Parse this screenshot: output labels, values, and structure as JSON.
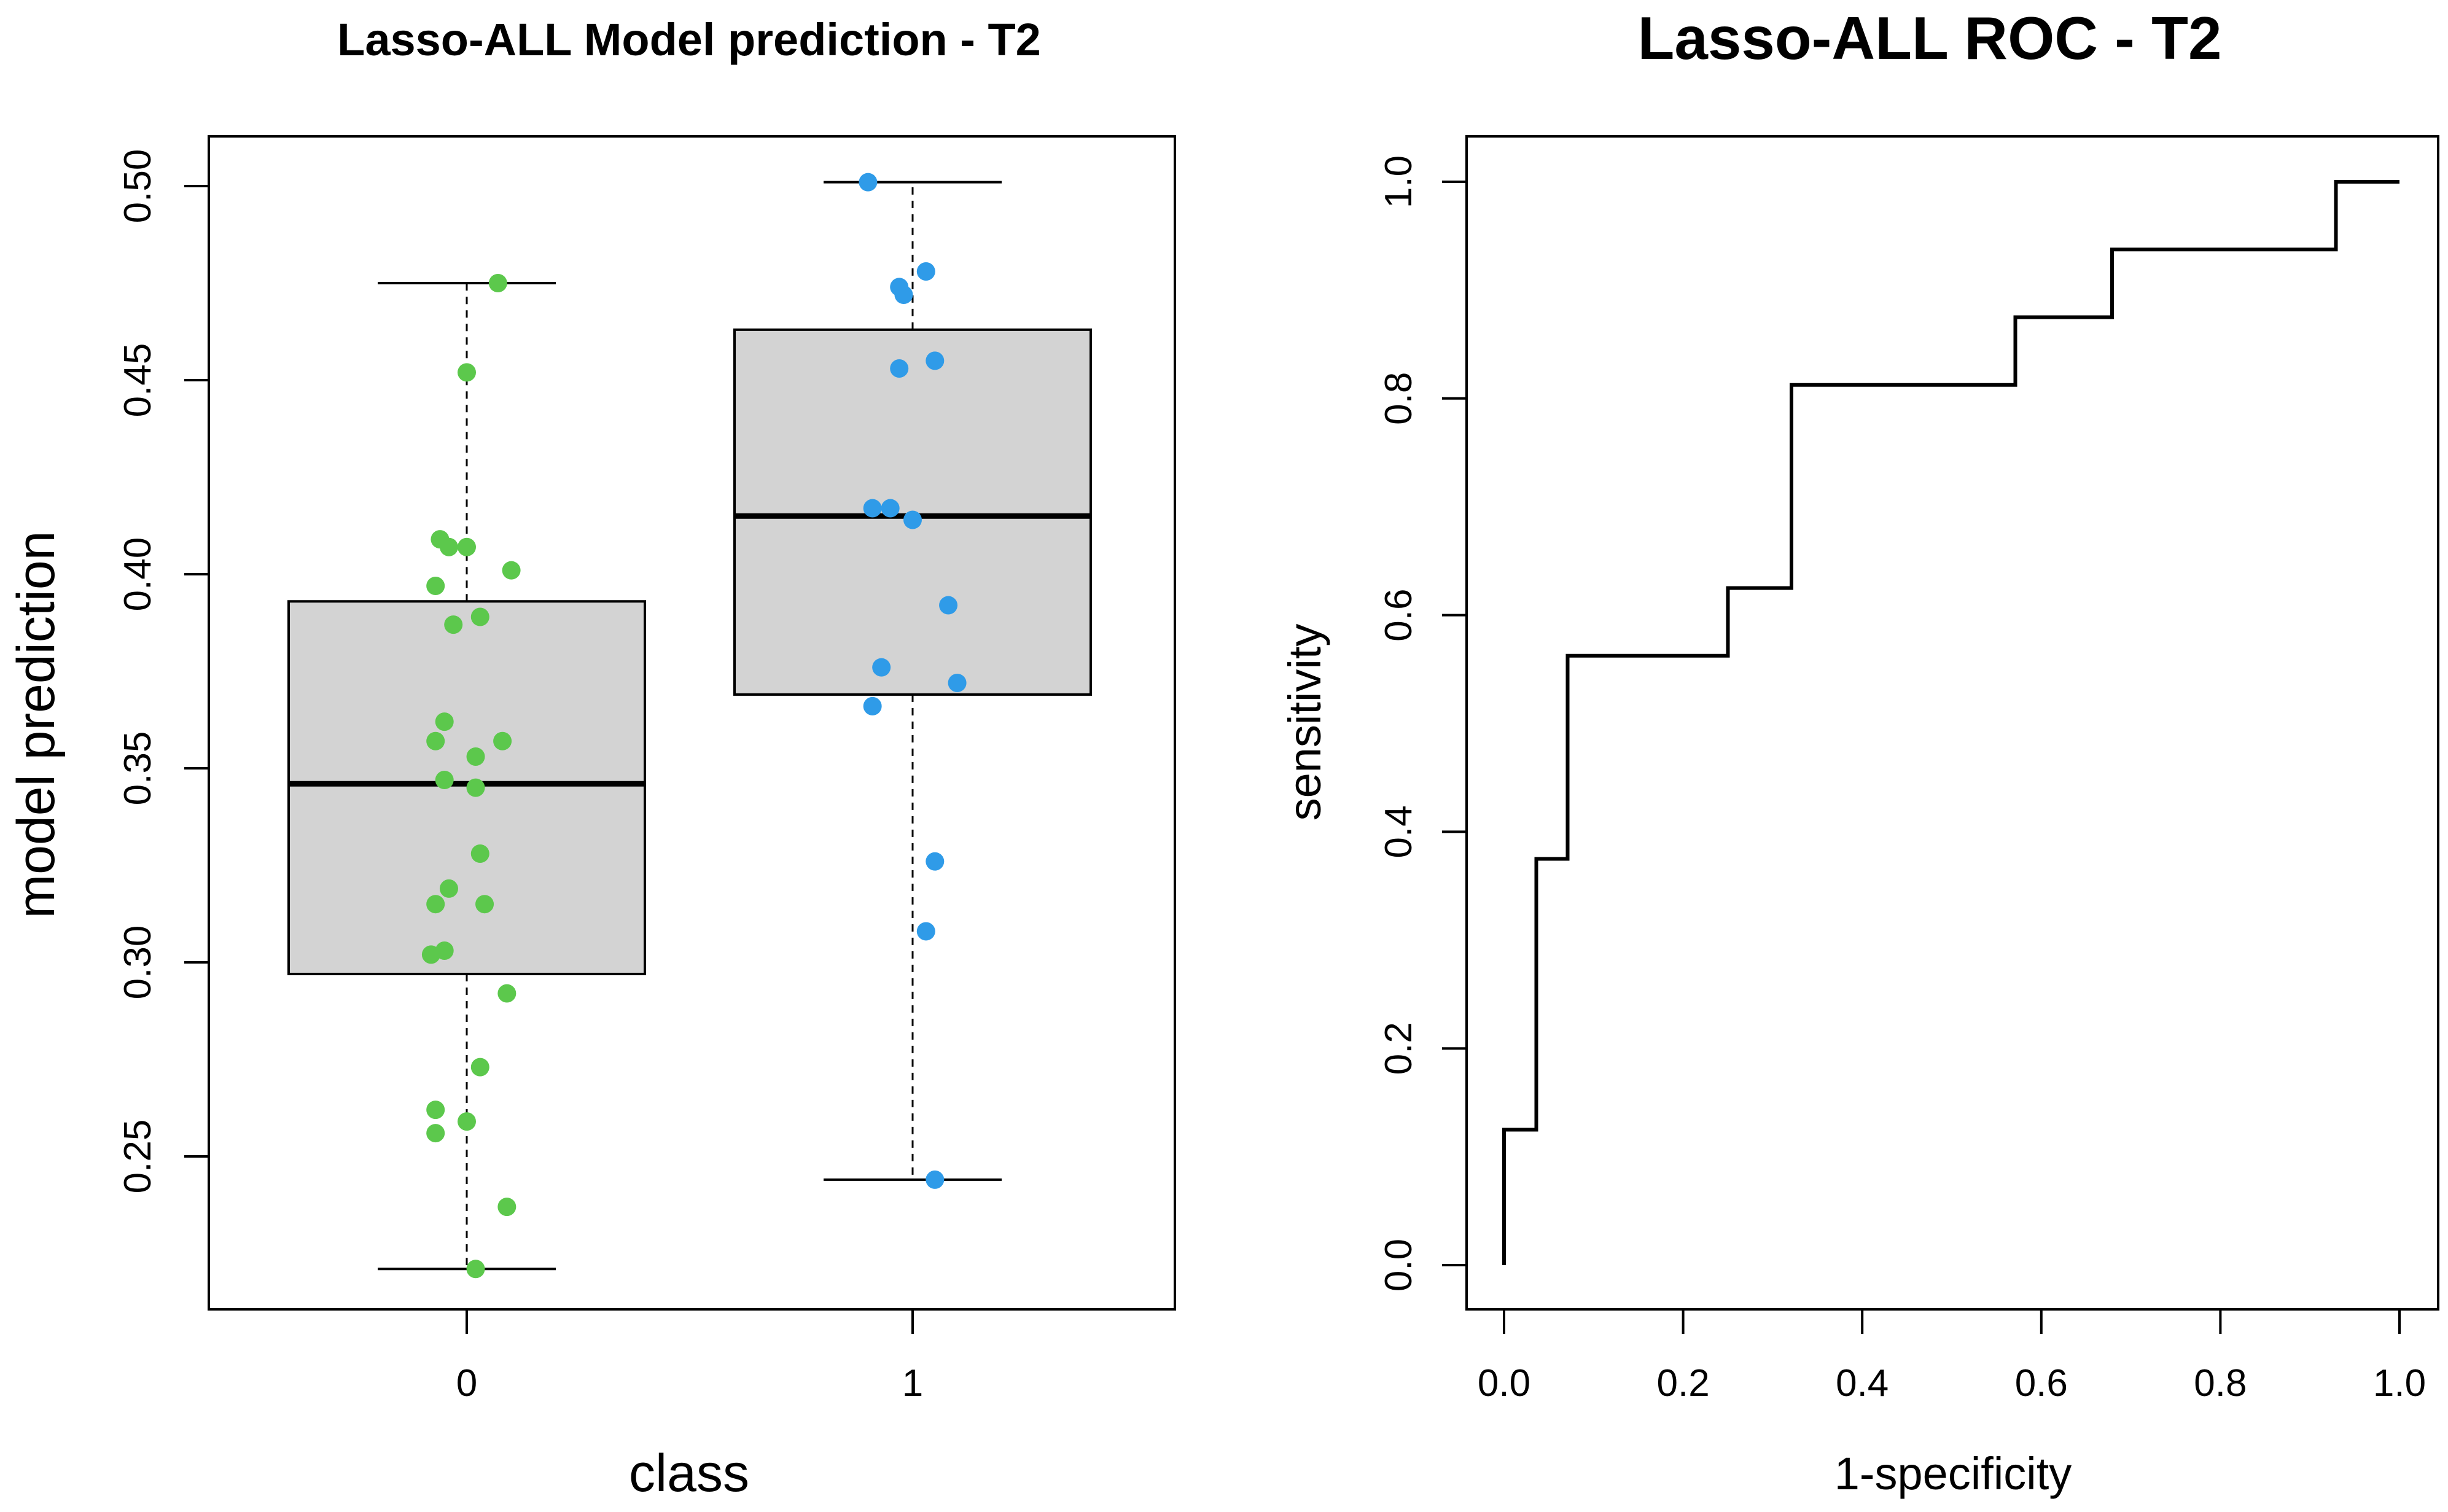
{
  "colors": {
    "class0_points": "#5cc84c",
    "class1_points": "#2f9be8",
    "box_fill": "#d3d3d3",
    "stroke": "#000000"
  },
  "chart_data": [
    {
      "type": "box",
      "title": "Lasso-ALL Model prediction - T2",
      "xlabel": "class",
      "ylabel": "model prediction",
      "categories": [
        "0",
        "1"
      ],
      "ylim": [
        0.215,
        0.51
      ],
      "yticks": [
        0.25,
        0.3,
        0.35,
        0.4,
        0.45,
        0.5
      ],
      "ytick_labels": [
        "0.25",
        "0.30",
        "0.35",
        "0.40",
        "0.45",
        "0.50"
      ],
      "boxes": [
        {
          "category": "0",
          "whisker_low": 0.221,
          "q1": 0.297,
          "median": 0.346,
          "q3": 0.393,
          "whisker_high": 0.475
        },
        {
          "category": "1",
          "whisker_low": 0.244,
          "q1": 0.369,
          "median": 0.415,
          "q3": 0.463,
          "whisker_high": 0.501
        }
      ],
      "points": [
        {
          "category": "0",
          "values": [
            0.475,
            0.452,
            0.409,
            0.407,
            0.407,
            0.401,
            0.397,
            0.389,
            0.387,
            0.362,
            0.357,
            0.357,
            0.353,
            0.347,
            0.345,
            0.328,
            0.319,
            0.315,
            0.315,
            0.303,
            0.302,
            0.292,
            0.273,
            0.262,
            0.259,
            0.256,
            0.237,
            0.221
          ],
          "jitter": [
            0.07,
            0.0,
            -0.06,
            -0.04,
            0.0,
            0.1,
            -0.07,
            0.03,
            -0.03,
            -0.05,
            -0.07,
            0.08,
            0.02,
            -0.05,
            0.02,
            0.03,
            -0.04,
            -0.07,
            0.04,
            -0.05,
            -0.08,
            0.09,
            0.03,
            -0.07,
            0.0,
            -0.07,
            0.09,
            0.02
          ]
        },
        {
          "category": "1",
          "values": [
            0.501,
            0.478,
            0.474,
            0.472,
            0.455,
            0.453,
            0.417,
            0.417,
            0.414,
            0.392,
            0.376,
            0.372,
            0.366,
            0.326,
            0.308,
            0.244
          ],
          "jitter": [
            -0.1,
            0.03,
            -0.03,
            -0.02,
            0.05,
            -0.03,
            -0.09,
            -0.05,
            0.0,
            0.08,
            -0.07,
            0.1,
            -0.09,
            0.05,
            0.03,
            0.05
          ]
        }
      ]
    },
    {
      "type": "line",
      "title": "Lasso-ALL ROC - T2",
      "xlabel": "1-specificity",
      "ylabel": "sensitivity",
      "xlim": [
        0.0,
        1.0
      ],
      "ylim": [
        0.0,
        1.0
      ],
      "xticks": [
        0.0,
        0.2,
        0.4,
        0.6,
        0.8,
        1.0
      ],
      "xtick_labels": [
        "0.0",
        "0.2",
        "0.4",
        "0.6",
        "0.8",
        "1.0"
      ],
      "yticks": [
        0.0,
        0.2,
        0.4,
        0.6,
        0.8,
        1.0
      ],
      "ytick_labels": [
        "0.0",
        "0.2",
        "0.4",
        "0.6",
        "0.8",
        "1.0"
      ],
      "series": [
        {
          "name": "ROC",
          "x": [
            0.0,
            0.0,
            0.036,
            0.036,
            0.071,
            0.071,
            0.25,
            0.25,
            0.321,
            0.321,
            0.571,
            0.571,
            0.679,
            0.679,
            0.929,
            0.929,
            1.0
          ],
          "y": [
            0.0,
            0.125,
            0.125,
            0.375,
            0.375,
            0.5625,
            0.5625,
            0.625,
            0.625,
            0.8125,
            0.8125,
            0.875,
            0.875,
            0.9375,
            0.9375,
            1.0,
            1.0
          ]
        }
      ]
    }
  ]
}
